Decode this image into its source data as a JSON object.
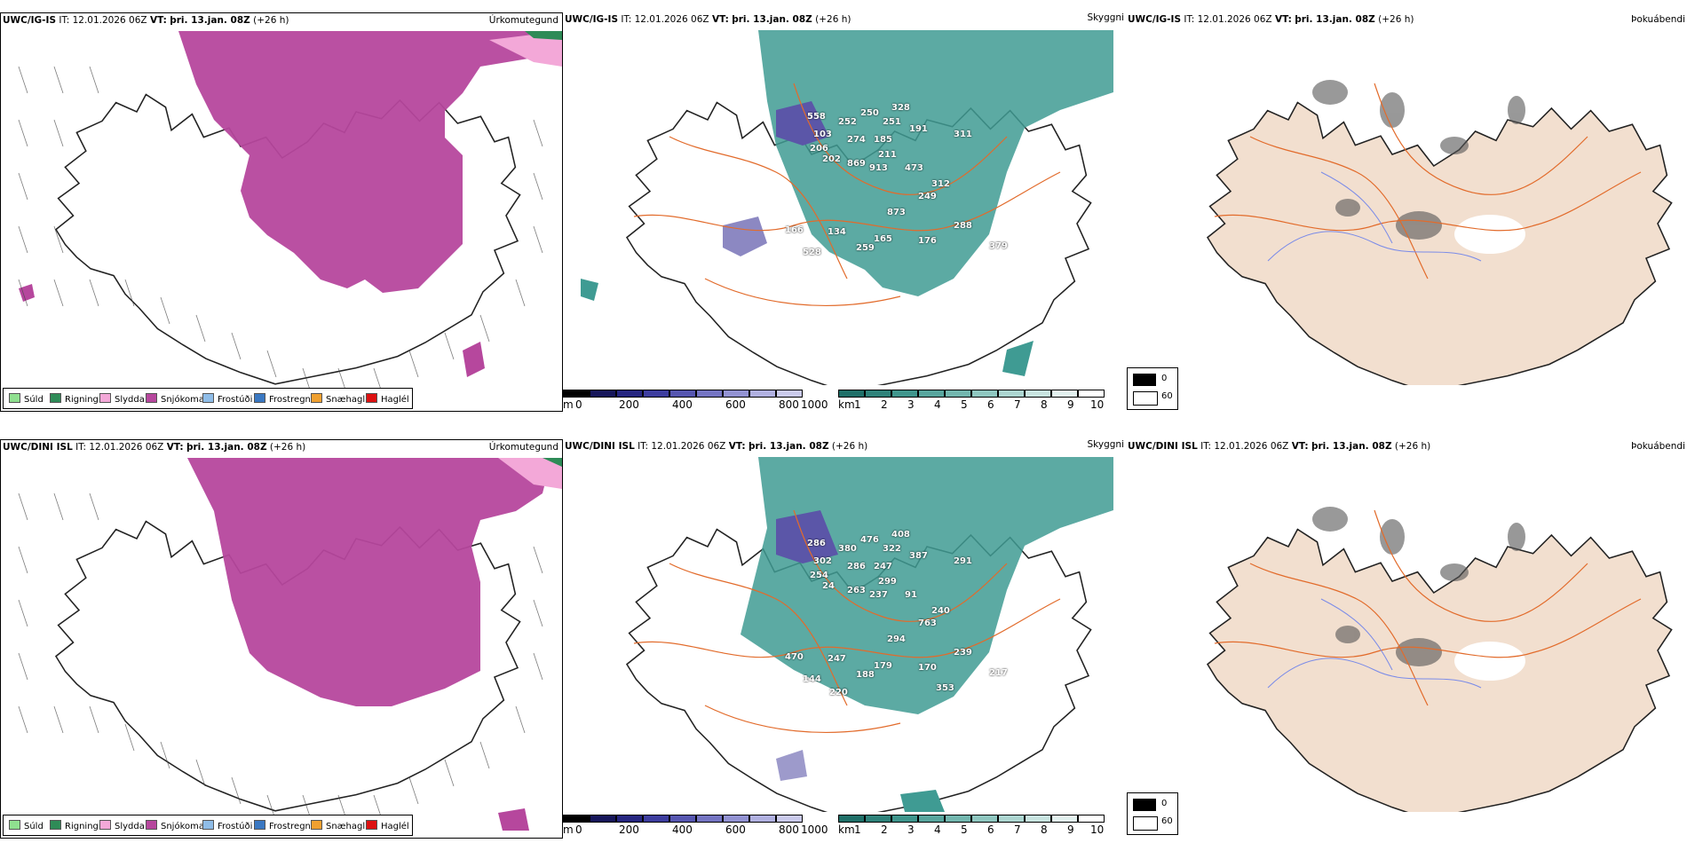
{
  "rows": [
    {
      "model": "UWC/IG-IS",
      "it_label": "IT: 12.01.2026 06Z",
      "vt_label": "VT:",
      "vt_value": "þri. 13.jan. 08Z",
      "lead": "(+26 h)",
      "precip_title": "Úrkomutegund",
      "cloud_title": "Skyggni",
      "fog_title": "Þokuábendi",
      "numbers": [
        "558",
        "252",
        "250",
        "328",
        "103",
        "274",
        "251",
        "191",
        "311",
        "185",
        "206",
        "211",
        "202",
        "869",
        "913",
        "473",
        "312",
        "249",
        "873",
        "288",
        "166",
        "134",
        "165",
        "176",
        "379",
        "528",
        "259"
      ]
    },
    {
      "model": "UWC/DINI ISL",
      "it_label": "IT: 12.01.2026 06Z",
      "vt_label": "VT:",
      "vt_value": "þri. 13.jan. 08Z",
      "lead": "(+26 h)",
      "precip_title": "Úrkomutegund",
      "cloud_title": "Skyggni",
      "fog_title": "Þokuábendi",
      "numbers": [
        "286",
        "380",
        "476",
        "408",
        "302",
        "286",
        "322",
        "387",
        "291",
        "247",
        "254",
        "299",
        "24",
        "263",
        "237",
        "91",
        "240",
        "763",
        "294",
        "239",
        "470",
        "247",
        "179",
        "170",
        "217",
        "144",
        "188",
        "353",
        "220"
      ]
    }
  ],
  "precip_legend": [
    {
      "label": "Súld",
      "color": "#8fe08f"
    },
    {
      "label": "Rigning",
      "color": "#2e8b57"
    },
    {
      "label": "Slydda",
      "color": "#f3a8d8"
    },
    {
      "label": "Snjókoma",
      "color": "#b6479d"
    },
    {
      "label": "Frostúði",
      "color": "#8fbde8"
    },
    {
      "label": "Frostregn",
      "color": "#3a78c2"
    },
    {
      "label": "Snæhagl",
      "color": "#f0a030"
    },
    {
      "label": "Haglél",
      "color": "#dd1111"
    }
  ],
  "height_scale": {
    "unit": "m",
    "ticks": [
      "0",
      "200",
      "400",
      "600",
      "800",
      "1000"
    ]
  },
  "vis_scale": {
    "unit": "km",
    "ticks": [
      "1",
      "2",
      "3",
      "4",
      "5",
      "6",
      "7",
      "8",
      "9",
      "10"
    ]
  },
  "fog_legend": {
    "high": "0",
    "low": "60"
  },
  "colors": {
    "snow": "#b6479d",
    "cloud": "#3f9b93",
    "relief": "#f2dfcf",
    "roads": "#e26b2b",
    "rivers": "#7a8be8"
  }
}
